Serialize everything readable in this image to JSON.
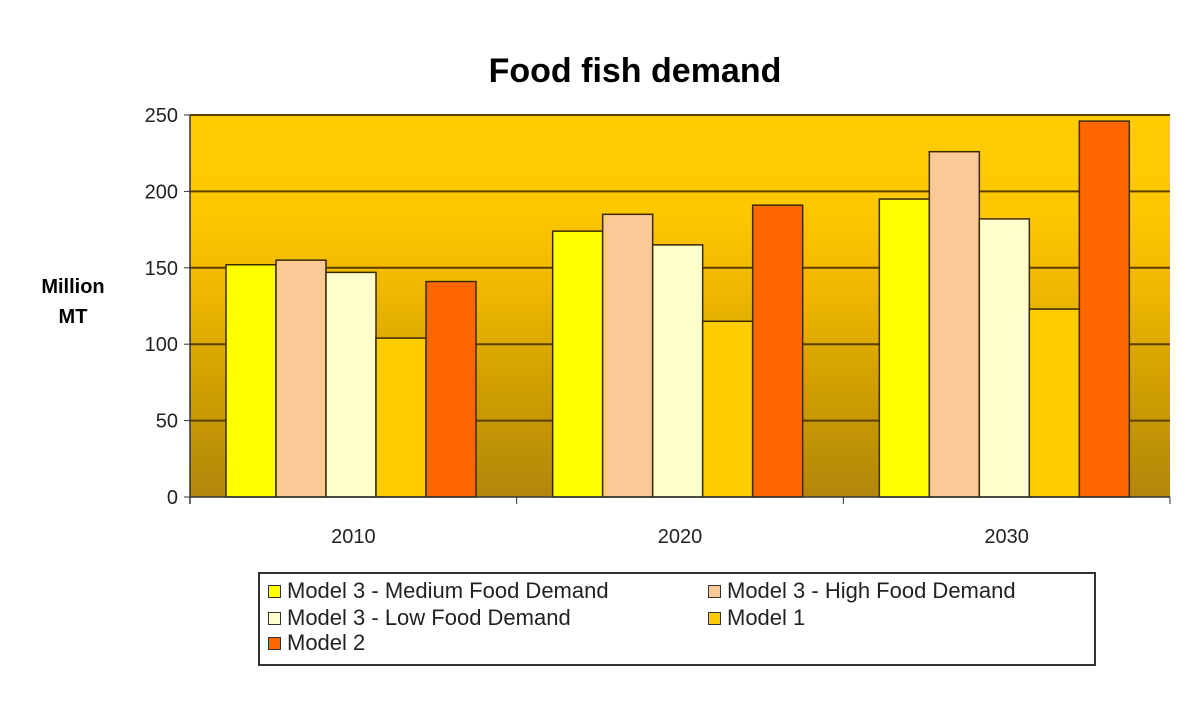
{
  "chart_data": {
    "type": "bar",
    "title": "Food fish demand",
    "ylabel": [
      "Million",
      "MT"
    ],
    "xlabel": "",
    "categories": [
      "2010",
      "2020",
      "2030"
    ],
    "ylim": [
      0,
      250
    ],
    "y_ticks": [
      "0",
      "50",
      "100",
      "150",
      "200",
      "250"
    ],
    "grid": true,
    "legend_position": "bottom",
    "series": [
      {
        "name": "Model 3 - Medium Food Demand",
        "color": "#ffff00",
        "values": [
          152,
          174,
          195
        ]
      },
      {
        "name": "Model 3 - High Food Demand",
        "color": "#fbc995",
        "values": [
          155,
          185,
          226
        ]
      },
      {
        "name": "Model 3 - Low Food Demand",
        "color": "#ffffcc",
        "values": [
          147,
          165,
          182
        ]
      },
      {
        "name": "Model 1",
        "color": "#ffcc00",
        "values": [
          104,
          115,
          123
        ]
      },
      {
        "name": "Model 2",
        "color": "#ff6600",
        "values": [
          141,
          191,
          246
        ]
      }
    ]
  }
}
